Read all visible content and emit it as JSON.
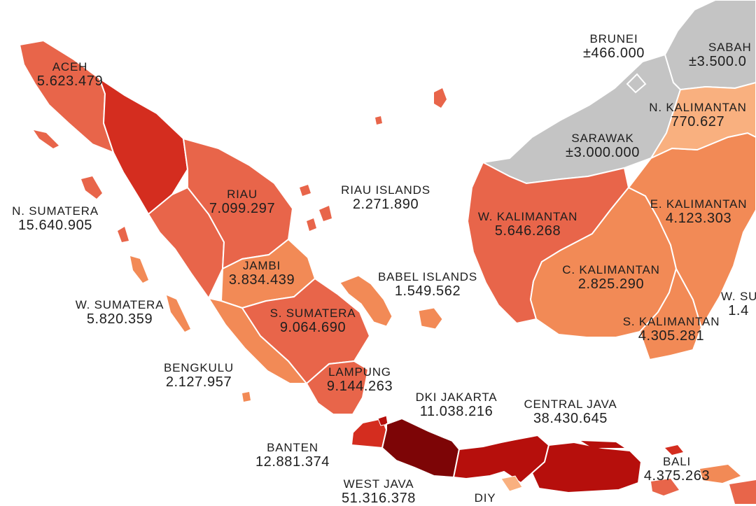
{
  "colors": {
    "background": "#ffffff",
    "light": "#f9b07f",
    "medium": "#f28a56",
    "medium_dark": "#e8654a",
    "dark": "#d42d1f",
    "darker": "#b60f0c",
    "darkest": "#7d0506",
    "neighbor_country": "#c4c4c4",
    "border": "#ffffff"
  },
  "regions": [
    {
      "name": "ACEH",
      "value": "5.623.479"
    },
    {
      "name": "N. SUMATERA",
      "value": "15.640.905"
    },
    {
      "name": "W. SUMATERA",
      "value": "5.820.359"
    },
    {
      "name": "RIAU",
      "value": "7.099.297"
    },
    {
      "name": "JAMBI",
      "value": "3.834.439"
    },
    {
      "name": "S. SUMATERA",
      "value": "9.064.690"
    },
    {
      "name": "BENGKULU",
      "value": "2.127.957"
    },
    {
      "name": "LAMPUNG",
      "value": "9.144.263"
    },
    {
      "name": "RIAU ISLANDS",
      "value": "2.271.890"
    },
    {
      "name": "BABEL ISLANDS",
      "value": "1.549.562"
    },
    {
      "name": "DKI JAKARTA",
      "value": "11.038.216"
    },
    {
      "name": "BANTEN",
      "value": "12.881.374"
    },
    {
      "name": "WEST JAVA",
      "value": "51.316.378"
    },
    {
      "name": "CENTRAL JAVA",
      "value": "38.430.645"
    },
    {
      "name": "DIY",
      "value": ""
    },
    {
      "name": "BALI",
      "value": "4.375.263"
    },
    {
      "name": "W. KALIMANTAN",
      "value": "5.646.268"
    },
    {
      "name": "C. KALIMANTAN",
      "value": "2.825.290"
    },
    {
      "name": "S. KALIMANTAN",
      "value": "4.305.281"
    },
    {
      "name": "E. KALIMANTAN",
      "value": "4.123.303"
    },
    {
      "name": "N. KALIMANTAN",
      "value": "770.627"
    },
    {
      "name": "W. SU",
      "value": "1.4"
    },
    {
      "name": "SARAWAK",
      "value": "±3.000.000"
    },
    {
      "name": "BRUNEI",
      "value": "±466.000"
    },
    {
      "name": "SABAH",
      "value": "±3.500.0"
    }
  ]
}
